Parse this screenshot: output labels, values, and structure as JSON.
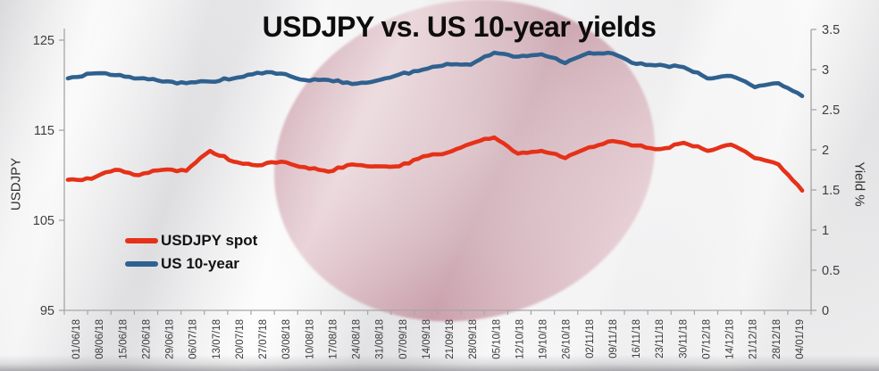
{
  "title": "USDJPY vs. US 10-year yields",
  "left_axis": {
    "title": "USDJPY",
    "tick_labels": [
      "125",
      "115",
      "105",
      "95"
    ],
    "tick_values": [
      125,
      115,
      105,
      95
    ],
    "min": 95,
    "max": 126.3
  },
  "right_axis": {
    "title": "Yield %",
    "tick_labels": [
      "3.5",
      "3",
      "2.5",
      "2",
      "1.5",
      "1",
      "0.5",
      "0"
    ],
    "tick_values": [
      3.5,
      3,
      2.5,
      2,
      1.5,
      1,
      0.5,
      0
    ],
    "min": 0,
    "max": 3.5
  },
  "legend": {
    "items": [
      {
        "label": "USDJPY spot",
        "color": "#e53118"
      },
      {
        "label": "US 10-year",
        "color": "#2f618f"
      }
    ]
  },
  "colors": {
    "axis_line": "#a6a6a6",
    "tick_text": "#3d3d3d",
    "usdjpy_line": "#e53118",
    "yield_line": "#2f618f",
    "flag_circle": "#c3859a"
  },
  "chart_data": {
    "type": "line",
    "title": "USDJPY vs. US 10-year yields",
    "categories": [
      "01/06/18",
      "08/06/18",
      "15/06/18",
      "22/06/18",
      "29/06/18",
      "06/07/18",
      "13/07/18",
      "20/07/18",
      "27/07/18",
      "03/08/18",
      "10/08/18",
      "17/08/18",
      "24/08/18",
      "31/08/18",
      "07/09/18",
      "14/09/18",
      "21/09/18",
      "28/09/18",
      "05/10/18",
      "12/10/18",
      "19/10/18",
      "26/10/18",
      "02/11/18",
      "09/11/18",
      "16/11/18",
      "23/11/18",
      "30/11/18",
      "07/12/18",
      "14/12/18",
      "21/12/18",
      "28/12/18",
      "04/01/19"
    ],
    "series": [
      {
        "name": "USDJPY spot",
        "axis": "left",
        "color": "#e53118",
        "values": [
          109.5,
          109.6,
          110.6,
          110.0,
          110.6,
          110.5,
          112.7,
          111.5,
          111.1,
          111.5,
          110.9,
          110.4,
          111.2,
          111.0,
          111.0,
          112.1,
          112.5,
          113.5,
          114.2,
          112.4,
          112.7,
          111.9,
          113.1,
          113.8,
          113.3,
          112.9,
          113.6,
          112.7,
          113.4,
          111.9,
          111.2,
          108.3
        ]
      },
      {
        "name": "US 10-year",
        "axis": "right",
        "color": "#2f618f",
        "values": [
          2.89,
          2.95,
          2.93,
          2.89,
          2.85,
          2.83,
          2.85,
          2.89,
          2.96,
          2.95,
          2.87,
          2.87,
          2.82,
          2.86,
          2.94,
          3.0,
          3.07,
          3.06,
          3.21,
          3.16,
          3.19,
          3.08,
          3.21,
          3.2,
          3.07,
          3.06,
          3.03,
          2.89,
          2.92,
          2.78,
          2.83,
          2.67
        ]
      }
    ],
    "left_ylabel": "USDJPY",
    "right_ylabel": "Yield %",
    "left_ylim": [
      95,
      126.3
    ],
    "right_ylim": [
      0,
      3.5
    ],
    "grid": false,
    "legend_position": "middle-left",
    "x_tick_rotation": 90
  }
}
